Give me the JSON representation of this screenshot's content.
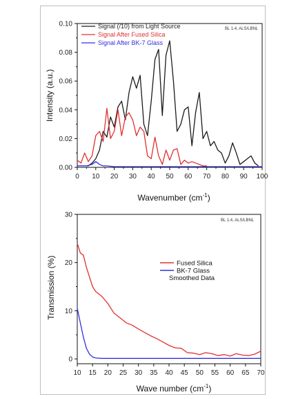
{
  "chart_data": [
    {
      "type": "line",
      "ylabel": "Intensity (a.u.)",
      "xlabel": "Wavenumber (cm",
      "xlabel_sup": "-1",
      "xlabel_end": ")",
      "annotation": "BL 1.4, ALS/LBNL",
      "xlim": [
        0,
        100
      ],
      "ylim": [
        0,
        0.1
      ],
      "xticks": [
        0,
        10,
        20,
        30,
        40,
        50,
        60,
        70,
        80,
        90,
        100
      ],
      "yticks": [
        0.0,
        0.02,
        0.04,
        0.06,
        0.08,
        0.1
      ],
      "ytick_labels": [
        "0.00",
        "0.02",
        "0.04",
        "0.06",
        "0.08",
        "0.10"
      ],
      "legend_position": "top-left",
      "series": [
        {
          "name": "Signal (/10) from Light Source",
          "color": "#1a1a1a",
          "x": [
            0,
            2,
            4,
            6,
            8,
            10,
            12,
            14,
            16,
            18,
            20,
            22,
            24,
            26,
            28,
            30,
            32,
            34,
            36,
            38,
            40,
            42,
            44,
            46,
            48,
            50,
            52,
            54,
            56,
            58,
            60,
            62,
            64,
            66,
            68,
            70,
            72,
            74,
            76,
            78,
            80,
            82,
            84,
            86,
            88,
            90,
            92,
            94,
            96,
            98
          ],
          "y": [
            0.001,
            0.001,
            0.001,
            0.001,
            0.003,
            0.006,
            0.012,
            0.025,
            0.021,
            0.035,
            0.028,
            0.042,
            0.046,
            0.033,
            0.052,
            0.063,
            0.055,
            0.064,
            0.03,
            0.022,
            0.046,
            0.075,
            0.082,
            0.036,
            0.078,
            0.088,
            0.06,
            0.025,
            0.03,
            0.04,
            0.042,
            0.015,
            0.038,
            0.052,
            0.02,
            0.025,
            0.015,
            0.018,
            0.012,
            0.01,
            0.003,
            0.008,
            0.017,
            0.01,
            0.002,
            0.004,
            0.006,
            0.008,
            0.003,
            0.001
          ]
        },
        {
          "name": "Signal After Fused Silica",
          "color": "#e03030",
          "x": [
            0,
            2,
            4,
            6,
            8,
            10,
            12,
            14,
            16,
            18,
            20,
            22,
            24,
            26,
            28,
            30,
            32,
            34,
            36,
            38,
            40,
            42,
            44,
            46,
            48,
            50,
            52,
            54,
            56,
            58,
            60,
            62,
            64,
            66,
            68,
            70
          ],
          "y": [
            0.005,
            0.003,
            0.01,
            0.004,
            0.008,
            0.022,
            0.025,
            0.018,
            0.041,
            0.02,
            0.025,
            0.04,
            0.022,
            0.035,
            0.038,
            0.033,
            0.022,
            0.028,
            0.025,
            0.008,
            0.006,
            0.021,
            0.008,
            0.002,
            0.012,
            0.005,
            0.012,
            0.013,
            0.002,
            0.005,
            0.003,
            0.004,
            0.003,
            0.002,
            0.001,
            0.001
          ]
        },
        {
          "name": "Signal After BK-7 Glass",
          "color": "#3030e0",
          "x": [
            0,
            5,
            8,
            10,
            12,
            14,
            16,
            20,
            30,
            40,
            50,
            60,
            70,
            80,
            90,
            100
          ],
          "y": [
            0.001,
            0.001,
            0.002,
            0.004,
            0.002,
            0.001,
            0.001,
            0.0005,
            0.0005,
            0.0005,
            0.0005,
            0.0005,
            0.0005,
            0.0005,
            0.0005,
            0.0005
          ]
        }
      ]
    },
    {
      "type": "line",
      "ylabel": "Transmission (%)",
      "xlabel": "Wave number (cm",
      "xlabel_sup": "-1",
      "xlabel_end": ")",
      "annotation": "BL 1.4, ALS/LBNL",
      "xlim": [
        10,
        70
      ],
      "ylim": [
        -1,
        30
      ],
      "xticks": [
        10,
        15,
        20,
        25,
        30,
        35,
        40,
        45,
        50,
        55,
        60,
        65,
        70
      ],
      "yticks": [
        0,
        10,
        20,
        30
      ],
      "ytick_labels": [
        "0",
        "10",
        "20",
        "30"
      ],
      "legend_position": "center-right",
      "legend_note": "Smoothed Data",
      "series": [
        {
          "name": "Fused Silica",
          "color": "#e03030",
          "x": [
            10,
            11,
            12,
            13,
            14,
            15,
            16,
            18,
            20,
            22,
            24,
            26,
            28,
            30,
            32,
            34,
            36,
            38,
            40,
            42,
            44,
            46,
            48,
            50,
            52,
            54,
            56,
            58,
            60,
            62,
            64,
            66,
            68,
            70
          ],
          "y": [
            24,
            22,
            21.5,
            19,
            17,
            15,
            14,
            13,
            11.5,
            9.5,
            8.5,
            7.5,
            7,
            6.2,
            5.5,
            4.8,
            4.2,
            3.5,
            2.8,
            2.3,
            2.2,
            1.3,
            1.2,
            0.9,
            1.3,
            1.1,
            0.7,
            0.9,
            0.6,
            1.1,
            0.8,
            0.7,
            1.0,
            1.6
          ]
        },
        {
          "name": "BK-7 Glass",
          "color": "#3030e0",
          "x": [
            10,
            11,
            12,
            13,
            14,
            15,
            16,
            18,
            20,
            25,
            30,
            40,
            50,
            60,
            70
          ],
          "y": [
            10.5,
            7.5,
            4.5,
            2.2,
            1.0,
            0.4,
            0.2,
            0.1,
            0.1,
            0.1,
            0.1,
            0.1,
            0.1,
            0.1,
            0.1
          ]
        }
      ]
    }
  ]
}
